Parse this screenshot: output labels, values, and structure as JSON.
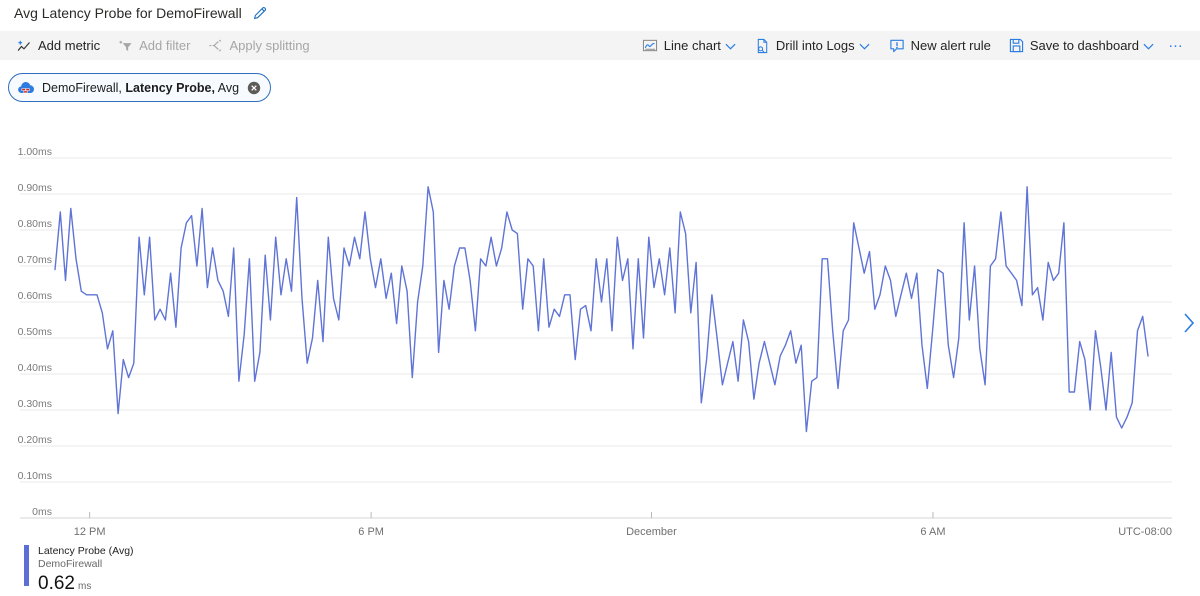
{
  "title": "Avg Latency Probe for DemoFirewall",
  "toolbar": {
    "add_metric": "Add metric",
    "add_filter": "Add filter",
    "apply_splitting": "Apply splitting",
    "line_chart": "Line chart",
    "drill_into_logs": "Drill into Logs",
    "new_alert_rule": "New alert rule",
    "save_to_dashboard": "Save to dashboard",
    "more": "…"
  },
  "metric_pill": {
    "resource": "DemoFirewall,",
    "metric": "Latency Probe,",
    "aggregation": "Avg"
  },
  "legend": {
    "series_label": "Latency Probe (Avg)",
    "resource": "DemoFirewall",
    "value": "0.62",
    "unit": "ms"
  },
  "colors": {
    "accent_blue": "#2a7de1",
    "line": "#5f74d6",
    "legend_bar": "#5b6fd4"
  },
  "chart_data": {
    "type": "line",
    "title": "Avg Latency Probe for DemoFirewall",
    "unit": "ms",
    "ylim": [
      0,
      1.0
    ],
    "ytick_step": 0.1,
    "ytick_labels": [
      "0ms",
      "0.10ms",
      "0.20ms",
      "0.30ms",
      "0.40ms",
      "0.50ms",
      "0.60ms",
      "0.70ms",
      "0.80ms",
      "0.90ms",
      "1.00ms"
    ],
    "xticks": [
      {
        "label": "12 PM",
        "pos": 0.031
      },
      {
        "label": "6 PM",
        "pos": 0.283
      },
      {
        "label": "December",
        "pos": 0.534
      },
      {
        "label": "6 AM",
        "pos": 0.786
      }
    ],
    "x_axis_right_label": "UTC-08:00",
    "grid": "horizontal",
    "legend_position": "bottom-left",
    "series": [
      {
        "name": "Latency Probe (Avg)",
        "resource": "DemoFirewall",
        "avg_label": "0.62 ms",
        "color": "#5f74d6",
        "values": [
          0.69,
          0.85,
          0.66,
          0.86,
          0.72,
          0.63,
          0.62,
          0.62,
          0.62,
          0.57,
          0.47,
          0.52,
          0.29,
          0.44,
          0.39,
          0.43,
          0.78,
          0.62,
          0.78,
          0.55,
          0.58,
          0.55,
          0.68,
          0.53,
          0.75,
          0.82,
          0.84,
          0.7,
          0.86,
          0.64,
          0.75,
          0.66,
          0.63,
          0.56,
          0.75,
          0.38,
          0.51,
          0.72,
          0.38,
          0.46,
          0.73,
          0.55,
          0.78,
          0.62,
          0.72,
          0.63,
          0.89,
          0.61,
          0.43,
          0.5,
          0.66,
          0.49,
          0.78,
          0.61,
          0.55,
          0.75,
          0.7,
          0.78,
          0.72,
          0.85,
          0.72,
          0.64,
          0.72,
          0.61,
          0.68,
          0.54,
          0.7,
          0.63,
          0.39,
          0.6,
          0.7,
          0.92,
          0.85,
          0.46,
          0.66,
          0.58,
          0.7,
          0.75,
          0.75,
          0.66,
          0.52,
          0.72,
          0.7,
          0.78,
          0.7,
          0.75,
          0.85,
          0.8,
          0.79,
          0.58,
          0.72,
          0.7,
          0.52,
          0.72,
          0.53,
          0.58,
          0.56,
          0.62,
          0.62,
          0.44,
          0.58,
          0.59,
          0.52,
          0.72,
          0.6,
          0.72,
          0.52,
          0.78,
          0.66,
          0.72,
          0.47,
          0.72,
          0.5,
          0.78,
          0.64,
          0.72,
          0.62,
          0.75,
          0.57,
          0.85,
          0.79,
          0.57,
          0.71,
          0.32,
          0.44,
          0.62,
          0.5,
          0.37,
          0.43,
          0.49,
          0.38,
          0.55,
          0.49,
          0.33,
          0.43,
          0.49,
          0.43,
          0.37,
          0.45,
          0.48,
          0.52,
          0.43,
          0.48,
          0.24,
          0.38,
          0.39,
          0.72,
          0.72,
          0.52,
          0.36,
          0.52,
          0.55,
          0.82,
          0.75,
          0.68,
          0.74,
          0.58,
          0.62,
          0.7,
          0.66,
          0.56,
          0.62,
          0.68,
          0.61,
          0.68,
          0.48,
          0.36,
          0.52,
          0.69,
          0.68,
          0.48,
          0.39,
          0.5,
          0.82,
          0.55,
          0.7,
          0.47,
          0.37,
          0.7,
          0.72,
          0.85,
          0.7,
          0.68,
          0.66,
          0.59,
          0.92,
          0.62,
          0.64,
          0.55,
          0.71,
          0.66,
          0.68,
          0.82,
          0.35,
          0.35,
          0.49,
          0.44,
          0.3,
          0.52,
          0.42,
          0.3,
          0.46,
          0.28,
          0.25,
          0.28,
          0.32,
          0.52,
          0.56,
          0.45
        ]
      }
    ]
  }
}
